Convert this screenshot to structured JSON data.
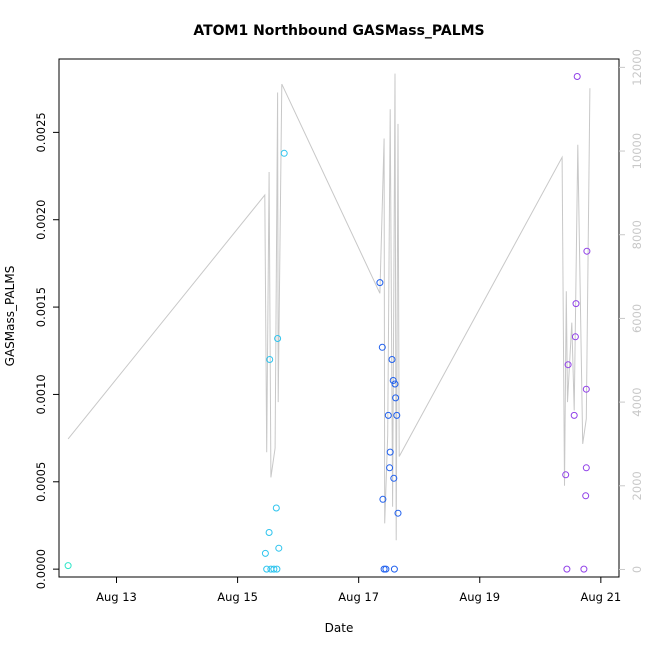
{
  "chart_data": {
    "type": "scatter",
    "title": "ATOM1 Northbound GASMass_PALMS",
    "xlabel": "Date",
    "ylabel": "GASMass_PALMS",
    "x_unit": "days (August 2016)",
    "xlim": [
      12.05,
      21.3
    ],
    "ylim": [
      -4.5e-05,
      0.00292
    ],
    "ylim_right": [
      -180,
      12200
    ],
    "x_ticks": [
      {
        "value": 13,
        "label": "Aug 13"
      },
      {
        "value": 15,
        "label": "Aug 15"
      },
      {
        "value": 17,
        "label": "Aug 17"
      },
      {
        "value": 19,
        "label": "Aug 19"
      },
      {
        "value": 21,
        "label": "Aug 21"
      }
    ],
    "y_ticks": [
      {
        "value": 0,
        "label": "0.0000"
      },
      {
        "value": 0.0005,
        "label": "0.0005"
      },
      {
        "value": 0.001,
        "label": "0.0010"
      },
      {
        "value": 0.0015,
        "label": "0.0015"
      },
      {
        "value": 0.002,
        "label": "0.0020"
      },
      {
        "value": 0.0025,
        "label": "0.0025"
      }
    ],
    "y_ticks_right": [
      {
        "value": 0,
        "label": "0"
      },
      {
        "value": 2000,
        "label": "2000"
      },
      {
        "value": 4000,
        "label": "4000"
      },
      {
        "value": 6000,
        "label": "6000"
      },
      {
        "value": 8000,
        "label": "8000"
      },
      {
        "value": 10000,
        "label": "10000"
      },
      {
        "value": 12000,
        "label": "12000"
      }
    ],
    "grid": false,
    "line_color": "#c8c8c8",
    "series": [
      {
        "color": "#2ee6c8",
        "points": [
          [
            12.2,
            2e-05
          ]
        ]
      },
      {
        "color": "#2ec4ee",
        "points": [
          [
            15.46,
            9e-05
          ],
          [
            15.48,
            0.0
          ],
          [
            15.52,
            0.00021
          ],
          [
            15.53,
            0.0012
          ],
          [
            15.55,
            0.0
          ],
          [
            15.6,
            0.0
          ],
          [
            15.64,
            0.00035
          ],
          [
            15.65,
            0.0
          ],
          [
            15.66,
            0.00132
          ],
          [
            15.68,
            0.00012
          ],
          [
            15.77,
            0.00238
          ]
        ]
      },
      {
        "color": "#2060ee",
        "points": [
          [
            17.35,
            0.00164
          ],
          [
            17.39,
            0.00127
          ],
          [
            17.4,
            0.0004
          ],
          [
            17.42,
            0.0
          ],
          [
            17.45,
            0.0
          ],
          [
            17.49,
            0.00088
          ],
          [
            17.51,
            0.00058
          ],
          [
            17.52,
            0.00067
          ],
          [
            17.55,
            0.0012
          ],
          [
            17.57,
            0.00108
          ],
          [
            17.58,
            0.00052
          ],
          [
            17.59,
            0.0
          ],
          [
            17.6,
            0.00106
          ],
          [
            17.61,
            0.00098
          ],
          [
            17.63,
            0.00088
          ],
          [
            17.65,
            0.00032
          ]
        ]
      },
      {
        "color": "#9040e8",
        "points": [
          [
            20.42,
            0.00054
          ],
          [
            20.44,
            0.0
          ],
          [
            20.46,
            0.00117
          ],
          [
            20.56,
            0.00088
          ],
          [
            20.58,
            0.00133
          ],
          [
            20.59,
            0.00152
          ],
          [
            20.61,
            0.00282
          ],
          [
            20.72,
            0.0
          ],
          [
            20.75,
            0.00042
          ],
          [
            20.76,
            0.00058
          ],
          [
            20.76,
            0.00103
          ],
          [
            20.77,
            0.00182
          ]
        ]
      }
    ],
    "secondary_line": [
      [
        12.2,
        3120
      ],
      [
        15.45,
        8950
      ],
      [
        15.48,
        2800
      ],
      [
        15.52,
        9500
      ],
      [
        15.55,
        2200
      ],
      [
        15.62,
        2900
      ],
      [
        15.66,
        11400
      ],
      [
        15.67,
        4000
      ],
      [
        15.73,
        11600
      ],
      [
        17.35,
        6600
      ],
      [
        17.42,
        10300
      ],
      [
        17.43,
        1100
      ],
      [
        17.48,
        3200
      ],
      [
        17.52,
        11000
      ],
      [
        17.56,
        1500
      ],
      [
        17.6,
        11850
      ],
      [
        17.62,
        700
      ],
      [
        17.65,
        10650
      ],
      [
        17.67,
        2700
      ],
      [
        20.36,
        9850
      ],
      [
        20.4,
        2000
      ],
      [
        20.43,
        6650
      ],
      [
        20.45,
        4000
      ],
      [
        20.52,
        5900
      ],
      [
        20.56,
        3800
      ],
      [
        20.62,
        10150
      ],
      [
        20.7,
        3000
      ],
      [
        20.76,
        3600
      ],
      [
        20.82,
        11500
      ]
    ]
  }
}
